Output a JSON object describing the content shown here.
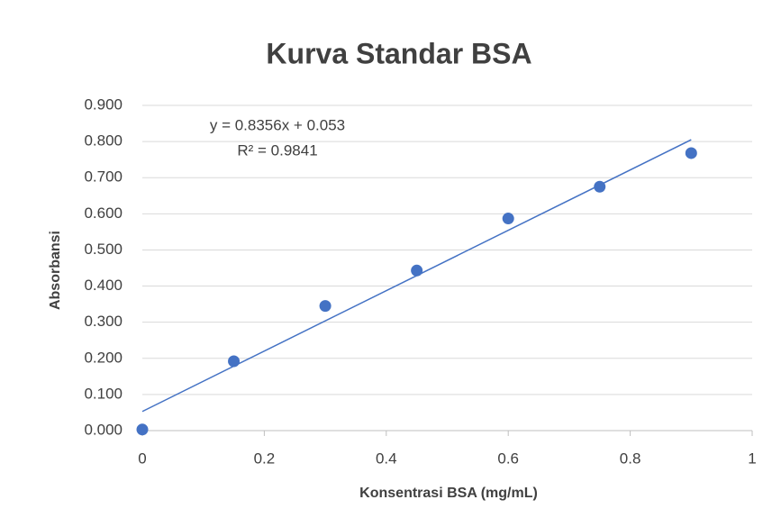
{
  "chart_data": {
    "type": "scatter",
    "title": "Kurva Standar BSA",
    "x_label": "Konsentrasi BSA (mg/mL)",
    "y_label": "Absorbansi",
    "x": [
      0,
      0.15,
      0.3,
      0.45,
      0.6,
      0.75,
      0.9
    ],
    "values": [
      0.003,
      0.192,
      0.345,
      0.443,
      0.587,
      0.675,
      0.768
    ],
    "color": "#4472c4",
    "trendline": {
      "x": [
        0,
        0.9
      ],
      "values": [
        0.053,
        0.805
      ],
      "color": "#4472c4"
    },
    "annotations": [
      "y = 0.8356x + 0.053",
      "R² = 0.9841"
    ],
    "xlim": [
      0,
      1
    ],
    "xticks": [
      0,
      0.2,
      0.4,
      0.6,
      0.8,
      1
    ],
    "ylim": [
      0,
      0.9
    ],
    "yticks": [
      {
        "value": 0,
        "label": "0.000"
      },
      {
        "value": 0.1,
        "label": "0.100"
      },
      {
        "value": 0.2,
        "label": "0.200"
      },
      {
        "value": 0.3,
        "label": "0.300"
      },
      {
        "value": 0.4,
        "label": "0.400"
      },
      {
        "value": 0.5,
        "label": "0.500"
      },
      {
        "value": 0.6,
        "label": "0.600"
      },
      {
        "value": 0.7,
        "label": "0.700"
      },
      {
        "value": 0.8,
        "label": "0.800"
      },
      {
        "value": 0.9,
        "label": "0.900"
      }
    ],
    "grid": true
  }
}
